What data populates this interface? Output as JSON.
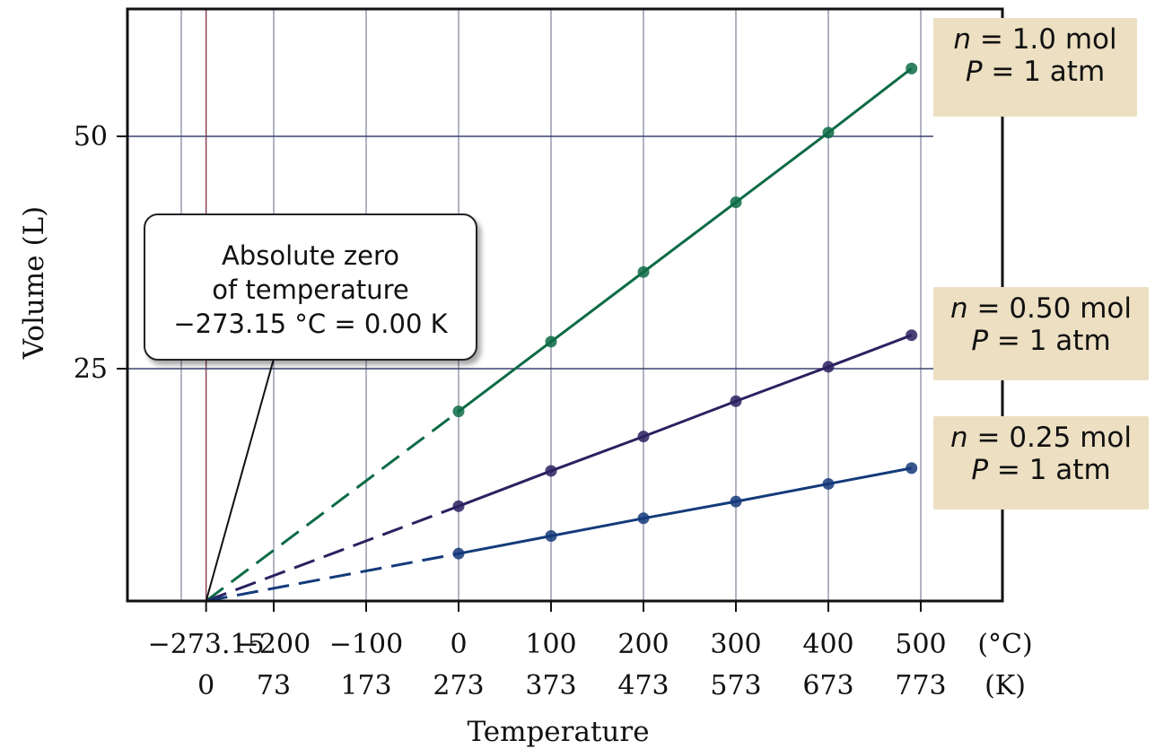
{
  "chart_data": {
    "type": "line",
    "xlabel": "Temperature",
    "ylabel": "Volume (L)",
    "x_unit_celsius": "(°C)",
    "x_unit_kelvin": "(K)",
    "xlim_celsius": [
      -300,
      570
    ],
    "ylim": [
      0,
      63
    ],
    "x_ticks_celsius": [
      "−273.15",
      "−200",
      "−100",
      "0",
      "100",
      "200",
      "300",
      "400",
      "500"
    ],
    "x_ticks_kelvin": [
      "0",
      "73",
      "173",
      "273",
      "373",
      "473",
      "573",
      "673",
      "773"
    ],
    "x_tick_values": [
      -273.15,
      -200,
      -100,
      0,
      100,
      200,
      300,
      400,
      500
    ],
    "y_ticks": [
      25,
      50
    ],
    "grid": true,
    "absolute_zero_celsius": -273.15,
    "series": [
      {
        "name": "n = 1.0 mol, P = 1 atm",
        "color": "#0d6b46",
        "x": [
          0,
          100,
          200,
          300,
          400,
          490
        ],
        "y": [
          20.4,
          27.9,
          35.4,
          42.9,
          50.4,
          57.3
        ]
      },
      {
        "name": "n = 0.50 mol, P = 1 atm",
        "color": "#2b2160",
        "x": [
          0,
          100,
          200,
          300,
          400,
          490
        ],
        "y": [
          10.2,
          14.0,
          17.7,
          21.5,
          25.2,
          28.6
        ]
      },
      {
        "name": "n = 0.25 mol, P = 1 atm",
        "color": "#143a7a",
        "x": [
          0,
          100,
          200,
          300,
          400,
          490
        ],
        "y": [
          5.1,
          7.0,
          8.9,
          10.7,
          12.6,
          14.3
        ]
      }
    ],
    "annotation": {
      "line1": "Absolute zero",
      "line2": "of temperature",
      "line3": "−273.15 °C = 0.00 K"
    },
    "labels": [
      {
        "n_var": "n",
        "n_rest": " = 1.0 mol",
        "p_var": "P",
        "p_rest": " = 1 atm"
      },
      {
        "n_var": "n",
        "n_rest": " = 0.50 mol",
        "p_var": "P",
        "p_rest": " = 1 atm"
      },
      {
        "n_var": "n",
        "n_rest": " = 0.25 mol",
        "p_var": "P",
        "p_rest": " = 1 atm"
      }
    ]
  }
}
